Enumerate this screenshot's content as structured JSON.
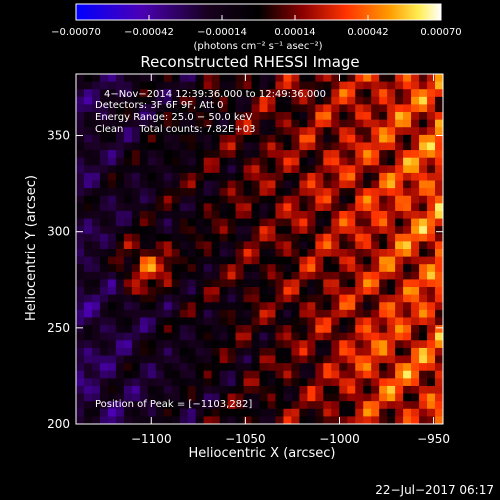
{
  "chart_data": {
    "type": "heatmap",
    "title": "Reconstructed RHESSI Image",
    "xlabel": "Heliocentric X (arcsec)",
    "ylabel": "Heliocentric Y (arcsec)",
    "xlim": [
      -1140,
      -945
    ],
    "ylim": [
      200,
      382
    ],
    "x_ticks": [
      {
        "value": -1100,
        "label": "−1100"
      },
      {
        "value": -1050,
        "label": "−1050"
      },
      {
        "value": -1000,
        "label": "−1000"
      },
      {
        "value": -950,
        "label": "−950"
      }
    ],
    "y_ticks": [
      {
        "value": 200,
        "label": "200"
      },
      {
        "value": 250,
        "label": "250"
      },
      {
        "value": 300,
        "label": "300"
      },
      {
        "value": 350,
        "label": "350"
      }
    ],
    "colorbar": {
      "range": [
        -0.0007,
        0.0007
      ],
      "colormap": [
        "#0000ff",
        "#5a00a0",
        "#000000",
        "#8b0000",
        "#ff3000",
        "#ffa000",
        "#ffff80",
        "#ffffff"
      ],
      "ticks": [
        {
          "value": -0.0007,
          "label": "−0.00070"
        },
        {
          "value": -0.00042,
          "label": "−0.00042"
        },
        {
          "value": -0.00014,
          "label": "−0.00014"
        },
        {
          "value": 0.00014,
          "label": "0.00014"
        },
        {
          "value": 0.00042,
          "label": "0.00042"
        },
        {
          "value": 0.0007,
          "label": "0.00070"
        }
      ],
      "unit_label": "(photons cm⁻² s⁻¹ asec⁻²)"
    },
    "peak": {
      "x": -1103,
      "y": 282
    },
    "annotations": [
      "4−Nov−2014 12:39:36.000 to 12:49:36.000",
      "Detectors: 3F 6F 9F, Att 0",
      "Energy Range: 25.0 − 50.0 keV",
      "Clean     Total counts: 7.82E+03"
    ],
    "peak_label": "Position of Peak = [−1103,282]"
  },
  "footer": {
    "timestamp": "22−Jul−2017 06:17"
  }
}
